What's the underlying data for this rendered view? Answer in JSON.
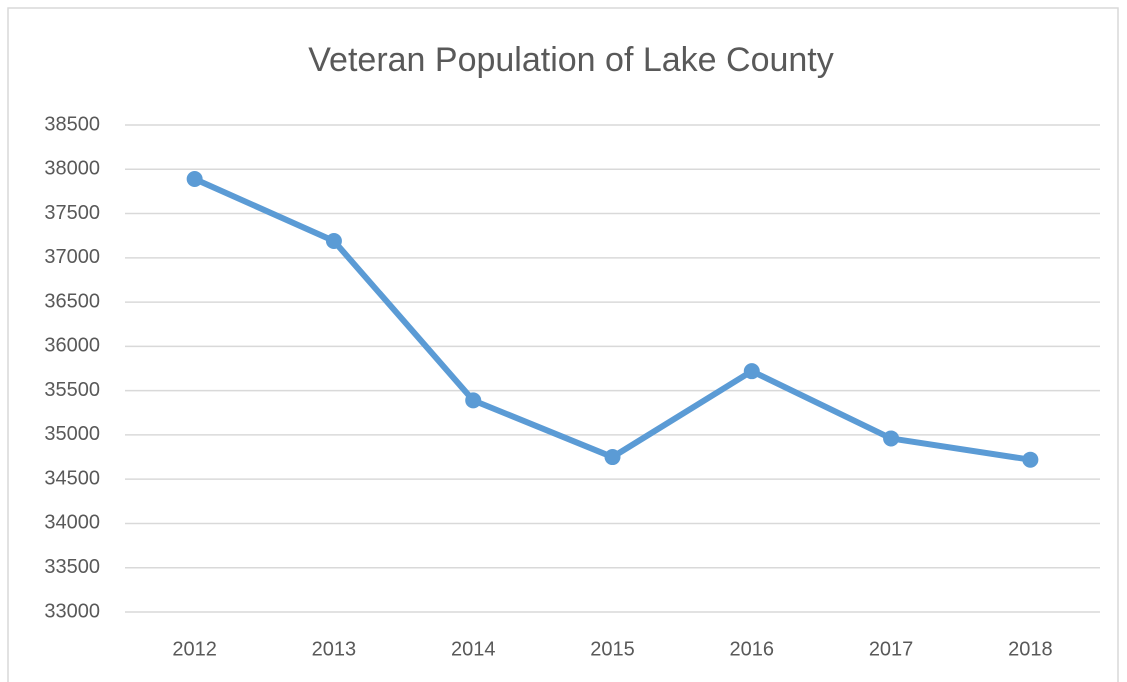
{
  "chart_data": {
    "type": "line",
    "title": "Veteran Population of Lake County",
    "categories": [
      "2012",
      "2013",
      "2014",
      "2015",
      "2016",
      "2017",
      "2018"
    ],
    "series": [
      {
        "name": "Veteran Population",
        "color": "#5b9bd5",
        "values": [
          37890,
          37190,
          35390,
          34750,
          35720,
          34960,
          34720
        ]
      }
    ],
    "ylim": [
      33000,
      38500
    ],
    "yticks": [
      33000,
      33500,
      34000,
      34500,
      35000,
      35500,
      36000,
      36500,
      37000,
      37500,
      38000,
      38500
    ],
    "grid": true
  }
}
